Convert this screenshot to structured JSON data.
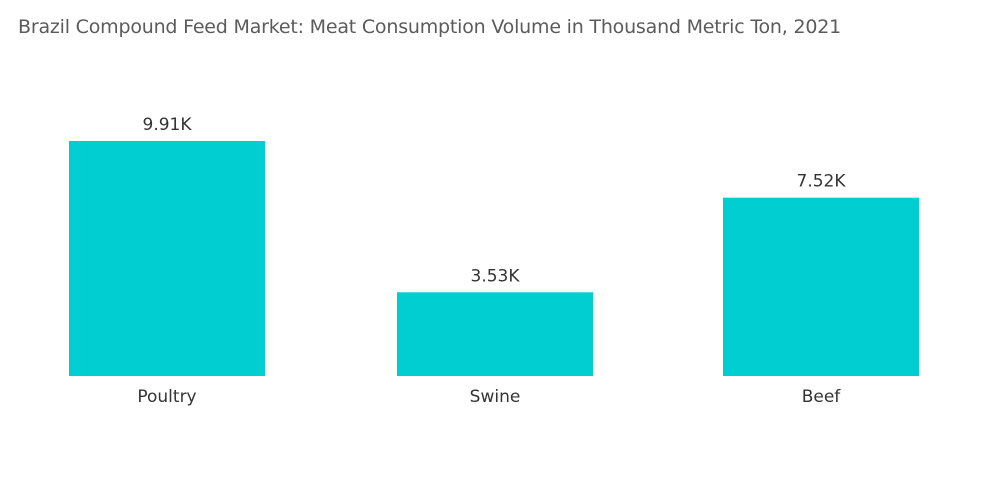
{
  "chart_data": {
    "type": "bar",
    "title": "Brazil Compound Feed Market:  Meat Consumption Volume in Thousand Metric Ton, 2021",
    "categories": [
      "Poultry",
      "Swine",
      "Beef"
    ],
    "values": [
      9.91,
      3.53,
      7.52
    ],
    "data_labels": [
      "9.91K",
      "3.53K",
      "7.52K"
    ],
    "xlabel": "",
    "ylabel": "",
    "ylim": [
      0,
      9.91
    ],
    "grid": false,
    "legend": "none",
    "bar_color": "#00CED1"
  }
}
